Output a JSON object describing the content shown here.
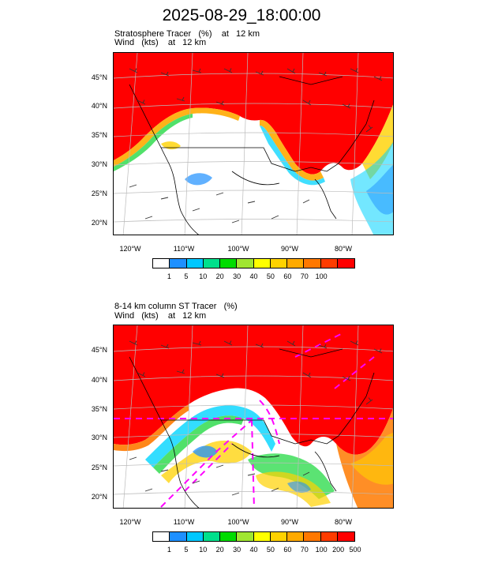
{
  "title": "2025-08-29_18:00:00",
  "panels": [
    {
      "caption_line1": "Stratosphere Tracer   (%)    at   12 km",
      "caption_line2": "Wind   (kts)    at   12 km",
      "lat_labels": [
        "45°N",
        "40°N",
        "35°N",
        "30°N",
        "25°N",
        "20°N"
      ],
      "lon_labels": [
        "120°W",
        "110°W",
        "100°W",
        "90°W",
        "80°W"
      ],
      "colorbar_ticks": [
        "1",
        "5",
        "10",
        "20",
        "30",
        "40",
        "50",
        "60",
        "70",
        "100"
      ]
    },
    {
      "caption_line1": "8-14 km column ST Tracer   (%)",
      "caption_line2": "Wind   (kts)    at   12 km",
      "lat_labels": [
        "45°N",
        "40°N",
        "35°N",
        "30°N",
        "25°N",
        "20°N"
      ],
      "lon_labels": [
        "120°W",
        "110°W",
        "100°W",
        "90°W",
        "80°W"
      ],
      "colorbar_ticks": [
        "1",
        "5",
        "10",
        "20",
        "30",
        "40",
        "50",
        "60",
        "70",
        "100",
        "200",
        "500"
      ]
    }
  ],
  "colorbar_colors": [
    "#ffffff",
    "#1e90ff",
    "#00c8ff",
    "#00e08c",
    "#00dc00",
    "#a0e632",
    "#ffff00",
    "#ffd200",
    "#ffaa00",
    "#ff7800",
    "#ff3c00",
    "#ff0000"
  ],
  "colors": {
    "red": "#ff0000",
    "orange": "#ff7a00",
    "yellow": "#ffd200",
    "green": "#32dc50",
    "cyan": "#00d4ff",
    "blue": "#1e90ff",
    "magenta": "#ff00ff"
  }
}
